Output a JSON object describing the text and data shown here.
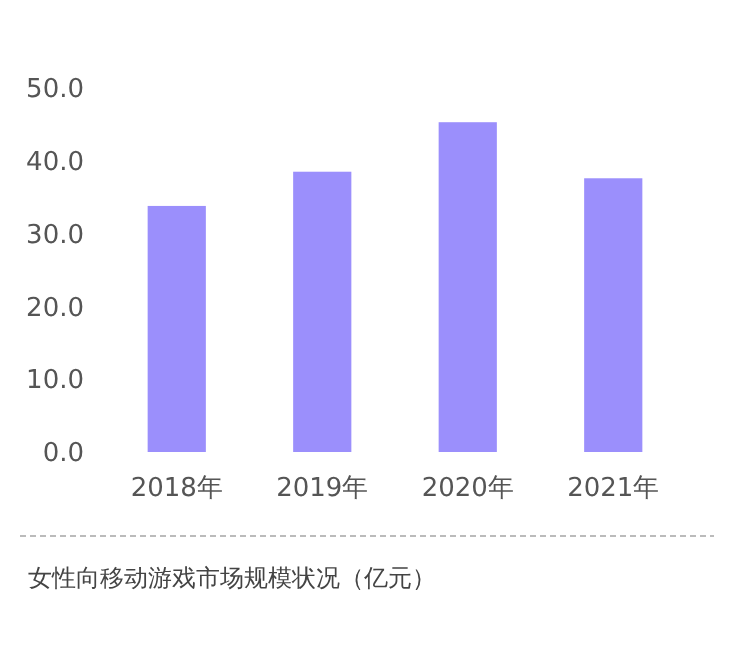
{
  "chart_data": {
    "type": "bar",
    "title": "女性向移动游戏市场规模状况（亿元）",
    "categories": [
      "2018年",
      "2019年",
      "2020年",
      "2021年"
    ],
    "values": [
      33.8,
      38.5,
      45.3,
      37.6
    ],
    "color": "#9b8ffc",
    "ylim": [
      0,
      50
    ],
    "yticks": [
      {
        "value": 0,
        "label": "0.0"
      },
      {
        "value": 10,
        "label": "10.0"
      },
      {
        "value": 20,
        "label": "20.0"
      },
      {
        "value": 30,
        "label": "30.0"
      },
      {
        "value": 40,
        "label": "40.0"
      },
      {
        "value": 50,
        "label": "50.0"
      }
    ],
    "grid": false
  }
}
